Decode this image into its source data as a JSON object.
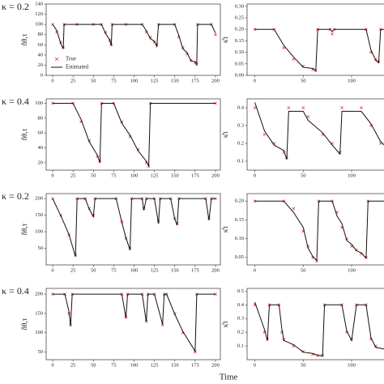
{
  "xlabel": "Time",
  "chart_data": [
    {
      "type": "line",
      "annotation": "κ = 0.2",
      "ylabel": "n̂θ,τ",
      "legend": "lower left",
      "xlim": [
        -8,
        206
      ],
      "xticks": [
        0,
        25,
        50,
        75,
        100,
        125,
        150,
        175,
        200
      ],
      "ylim": [
        0,
        140
      ],
      "yticks": [
        0,
        20,
        40,
        60,
        80,
        100,
        120,
        140
      ],
      "x": [
        0,
        5,
        10,
        13,
        14,
        30,
        50,
        60,
        65,
        70,
        72,
        73,
        90,
        110,
        115,
        120,
        125,
        128,
        130,
        150,
        155,
        160,
        165,
        170,
        175,
        177,
        178,
        195,
        200
      ],
      "series": [
        {
          "name": "True",
          "color": "#e8413c",
          "marker": "x",
          "values": [
            100,
            85,
            65,
            55,
            100,
            100,
            100,
            100,
            85,
            68,
            60,
            100,
            100,
            100,
            85,
            75,
            65,
            60,
            100,
            100,
            75,
            55,
            42,
            30,
            25,
            22,
            100,
            100,
            80
          ]
        },
        {
          "name": "Estimated",
          "color": "#111111",
          "marker": "line",
          "values": [
            100,
            88,
            62,
            52,
            100,
            100,
            100,
            100,
            82,
            70,
            58,
            100,
            100,
            100,
            88,
            72,
            67,
            57,
            100,
            100,
            78,
            52,
            45,
            28,
            27,
            20,
            100,
            100,
            83
          ]
        }
      ]
    },
    {
      "type": "line",
      "ylabel": "κ̂τ",
      "xlim": [
        -8,
        172
      ],
      "xticks": [
        0,
        50,
        100,
        150
      ],
      "ylim": [
        0,
        0.31
      ],
      "yticks": [
        {
          "value": 0,
          "label": "0.00"
        },
        {
          "value": 0.05,
          "label": "0.05"
        },
        {
          "value": 0.1,
          "label": "0.10"
        },
        {
          "value": 0.15,
          "label": "0.15"
        },
        {
          "value": 0.2,
          "label": "0.20"
        },
        {
          "value": 0.25,
          "label": "0.25"
        },
        {
          "value": 0.3,
          "label": "0.30"
        }
      ],
      "x": [
        0,
        20,
        30,
        40,
        50,
        60,
        63,
        65,
        78,
        80,
        82,
        115,
        120,
        125,
        128,
        130,
        140,
        150,
        160,
        170
      ],
      "series": [
        {
          "color": "#e8413c",
          "marker": "x",
          "values": [
            0.2,
            0.2,
            0.12,
            0.07,
            0.04,
            0.025,
            0.02,
            0.2,
            0.2,
            0.18,
            0.2,
            0.2,
            0.1,
            0.07,
            0.06,
            0.2,
            0.2,
            0.12,
            0.09,
            0.2
          ]
        },
        {
          "color": "#111111",
          "marker": "line",
          "values": [
            0.2,
            0.2,
            0.13,
            0.08,
            0.035,
            0.03,
            0.02,
            0.2,
            0.2,
            0.19,
            0.2,
            0.2,
            0.11,
            0.065,
            0.055,
            0.2,
            0.2,
            0.13,
            0.085,
            0.2
          ]
        }
      ]
    },
    {
      "type": "line",
      "annotation": "κ = 0.4",
      "ylabel": "n̂θ,τ",
      "xlim": [
        -8,
        206
      ],
      "xticks": [
        0,
        25,
        50,
        75,
        100,
        125,
        150,
        175,
        200
      ],
      "ylim": [
        10,
        106
      ],
      "yticks": [
        20,
        40,
        60,
        80,
        100
      ],
      "x": [
        0,
        25,
        35,
        45,
        55,
        58,
        60,
        75,
        85,
        95,
        105,
        115,
        118,
        120,
        200
      ],
      "series": [
        {
          "color": "#e8413c",
          "marker": "x",
          "values": [
            100,
            100,
            75,
            50,
            28,
            22,
            100,
            100,
            75,
            55,
            38,
            20,
            15,
            100,
            100
          ]
        },
        {
          "color": "#111111",
          "marker": "line",
          "values": [
            100,
            100,
            78,
            48,
            30,
            20,
            100,
            100,
            73,
            57,
            36,
            22,
            16,
            100,
            100
          ]
        }
      ]
    },
    {
      "type": "line",
      "ylabel": "κ̂τ",
      "xlim": [
        -8,
        172
      ],
      "xticks": [
        0,
        50,
        100,
        150
      ],
      "ylim": [
        0.05,
        0.45
      ],
      "yticks": [
        0.1,
        0.2,
        0.3,
        0.4
      ],
      "x": [
        0,
        10,
        20,
        30,
        33,
        35,
        50,
        55,
        70,
        80,
        88,
        90,
        110,
        120,
        130,
        150,
        160
      ],
      "series": [
        {
          "color": "#e8413c",
          "marker": "x",
          "values": [
            0.4,
            0.25,
            0.2,
            0.15,
            0.12,
            0.4,
            0.4,
            0.35,
            0.25,
            0.2,
            0.15,
            0.4,
            0.4,
            0.3,
            0.2,
            0.12,
            0.08
          ]
        },
        {
          "color": "#111111",
          "marker": "line",
          "values": [
            0.43,
            0.27,
            0.19,
            0.16,
            0.11,
            0.38,
            0.38,
            0.33,
            0.26,
            0.19,
            0.14,
            0.38,
            0.38,
            0.31,
            0.21,
            0.11,
            0.07
          ]
        }
      ]
    },
    {
      "type": "line",
      "annotation": "κ = 0.2",
      "ylabel": "n̂θ,τ",
      "xlim": [
        -8,
        206
      ],
      "xticks": [
        0,
        25,
        50,
        75,
        100,
        125,
        150,
        175,
        200
      ],
      "ylim": [
        0,
        215
      ],
      "yticks": [
        50,
        100,
        150,
        200
      ],
      "x": [
        0,
        10,
        20,
        28,
        30,
        40,
        45,
        50,
        52,
        78,
        85,
        90,
        95,
        97,
        110,
        112,
        115,
        125,
        130,
        132,
        145,
        150,
        153,
        155,
        188,
        192,
        195,
        200
      ],
      "series": [
        {
          "color": "#e8413c",
          "marker": "x",
          "values": [
            200,
            150,
            90,
            30,
            200,
            200,
            170,
            150,
            200,
            200,
            130,
            80,
            50,
            200,
            200,
            170,
            200,
            200,
            130,
            200,
            200,
            140,
            125,
            200,
            200,
            140,
            200,
            200
          ]
        },
        {
          "color": "#111111",
          "marker": "line",
          "values": [
            200,
            148,
            92,
            25,
            200,
            200,
            168,
            145,
            200,
            200,
            128,
            82,
            45,
            200,
            200,
            165,
            200,
            200,
            125,
            200,
            200,
            138,
            120,
            200,
            200,
            135,
            200,
            200
          ]
        }
      ]
    },
    {
      "type": "line",
      "ylabel": "κ̂τ",
      "xlim": [
        -8,
        172
      ],
      "xticks": [
        0,
        50,
        100,
        150
      ],
      "ylim": [
        0.03,
        0.22
      ],
      "yticks": [
        {
          "value": 0.05,
          "label": "0.05"
        },
        {
          "value": 0.1,
          "label": "0.10"
        },
        {
          "value": 0.15,
          "label": "0.15"
        },
        {
          "value": 0.2,
          "label": "0.20"
        }
      ],
      "x": [
        0,
        30,
        40,
        50,
        55,
        60,
        64,
        66,
        80,
        85,
        90,
        95,
        100,
        105,
        110,
        115,
        117,
        140,
        145,
        150,
        155,
        160
      ],
      "series": [
        {
          "color": "#e8413c",
          "marker": "x",
          "values": [
            0.2,
            0.2,
            0.18,
            0.12,
            0.08,
            0.05,
            0.04,
            0.2,
            0.2,
            0.17,
            0.13,
            0.1,
            0.08,
            0.07,
            0.06,
            0.05,
            0.2,
            0.2,
            0.17,
            0.12,
            0.09,
            0.08
          ]
        },
        {
          "color": "#111111",
          "marker": "line",
          "values": [
            0.2,
            0.2,
            0.17,
            0.13,
            0.075,
            0.052,
            0.042,
            0.2,
            0.2,
            0.16,
            0.14,
            0.095,
            0.085,
            0.068,
            0.062,
            0.048,
            0.2,
            0.2,
            0.16,
            0.13,
            0.085,
            0.075
          ]
        }
      ]
    },
    {
      "type": "line",
      "annotation": "κ = 0.4",
      "ylabel": "n̂θ,τ",
      "xlim": [
        -8,
        206
      ],
      "xticks": [
        0,
        25,
        50,
        75,
        100,
        125,
        150,
        175,
        200
      ],
      "ylim": [
        30,
        215
      ],
      "yticks": [
        50,
        100,
        150,
        200
      ],
      "x": [
        0,
        15,
        20,
        22,
        24,
        85,
        90,
        92,
        110,
        115,
        117,
        125,
        135,
        137,
        140,
        150,
        160,
        175,
        177,
        200
      ],
      "series": [
        {
          "color": "#e8413c",
          "marker": "x",
          "values": [
            200,
            200,
            150,
            120,
            200,
            200,
            140,
            200,
            200,
            130,
            200,
            200,
            120,
            200,
            200,
            150,
            100,
            50,
            200,
            200
          ]
        },
        {
          "color": "#111111",
          "marker": "line",
          "values": [
            200,
            200,
            155,
            118,
            200,
            200,
            138,
            200,
            200,
            128,
            200,
            200,
            122,
            200,
            200,
            148,
            103,
            52,
            200,
            200
          ]
        }
      ]
    },
    {
      "type": "line",
      "ylabel": "κ̂τ",
      "xlim": [
        -8,
        172
      ],
      "xticks": [
        0,
        50,
        100,
        150
      ],
      "ylim": [
        0,
        0.52
      ],
      "yticks": [
        0.1,
        0.2,
        0.3,
        0.4,
        0.5
      ],
      "x": [
        0,
        10,
        13,
        15,
        25,
        28,
        30,
        40,
        50,
        60,
        65,
        70,
        72,
        90,
        95,
        100,
        105,
        115,
        120,
        125,
        135,
        138,
        160
      ],
      "series": [
        {
          "color": "#e8413c",
          "marker": "x",
          "values": [
            0.4,
            0.2,
            0.15,
            0.4,
            0.4,
            0.2,
            0.15,
            0.1,
            0.06,
            0.04,
            0.03,
            0.03,
            0.4,
            0.4,
            0.2,
            0.15,
            0.4,
            0.4,
            0.15,
            0.1,
            0.08,
            0.4,
            0.4
          ]
        },
        {
          "color": "#111111",
          "marker": "line",
          "values": [
            0.42,
            0.22,
            0.14,
            0.4,
            0.4,
            0.22,
            0.14,
            0.11,
            0.055,
            0.045,
            0.032,
            0.028,
            0.4,
            0.4,
            0.21,
            0.14,
            0.4,
            0.4,
            0.16,
            0.09,
            0.075,
            0.4,
            0.4
          ]
        }
      ]
    }
  ]
}
